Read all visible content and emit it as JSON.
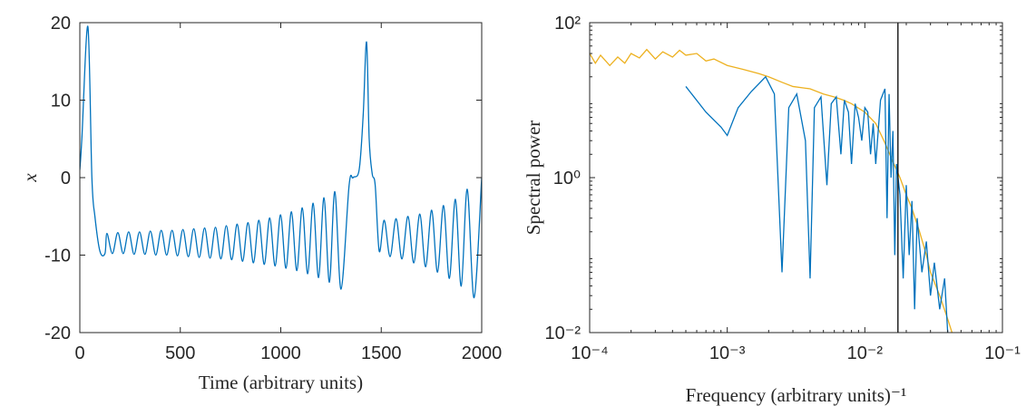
{
  "chart_data": [
    {
      "type": "line",
      "xlabel": "Time (arbitrary units)",
      "ylabel": "x",
      "xlim": [
        0,
        2000
      ],
      "xticks": [
        0,
        500,
        1000,
        1500,
        2000
      ],
      "ylim": [
        -20,
        20
      ],
      "yticks": [
        -20,
        -10,
        0,
        10,
        20
      ],
      "series": [
        {
          "color": "#0072bd",
          "x": [
            0,
            10,
            40,
            60,
            75,
            100,
            125,
            135,
            162,
            189,
            216,
            243,
            270,
            297,
            324,
            351,
            378,
            405,
            432,
            459,
            486,
            513,
            540,
            567,
            594,
            621,
            648,
            675,
            702,
            729,
            756,
            783,
            810,
            837,
            864,
            891,
            918,
            945,
            972,
            999,
            1026,
            1053,
            1080,
            1107,
            1134,
            1161,
            1188,
            1215,
            1242,
            1269,
            1300,
            1340,
            1360,
            1390,
            1410,
            1427,
            1440,
            1455,
            1470,
            1490,
            1515,
            1544,
            1574,
            1603,
            1633,
            1662,
            1692,
            1721,
            1751,
            1780,
            1810,
            1839,
            1869,
            1898,
            1928,
            1962,
            2000
          ],
          "values": [
            1,
            5,
            19.5,
            0,
            -5,
            -9.5,
            -9.8,
            -7.2,
            -9.8,
            -7.1,
            -9.8,
            -7.0,
            -9.9,
            -7.0,
            -9.9,
            -6.9,
            -10.0,
            -6.8,
            -10.0,
            -6.8,
            -10.1,
            -6.7,
            -10.2,
            -6.6,
            -10.3,
            -6.5,
            -10.4,
            -6.4,
            -10.5,
            -6.2,
            -10.6,
            -6.0,
            -10.8,
            -5.8,
            -11.0,
            -5.5,
            -11.2,
            -5.2,
            -11.4,
            -4.8,
            -11.7,
            -4.4,
            -12.0,
            -3.9,
            -12.4,
            -3.3,
            -12.9,
            -2.6,
            -13.5,
            -1.8,
            -14.4,
            -1,
            0,
            1,
            8,
            17.5,
            5,
            0.5,
            -1,
            -9.5,
            -5.5,
            -10.2,
            -5.3,
            -10.5,
            -5.0,
            -11.0,
            -4.7,
            -11.5,
            -4.2,
            -12.2,
            -3.6,
            -13.0,
            -2.8,
            -14.0,
            -1.5,
            -15.5,
            0
          ]
        }
      ]
    },
    {
      "type": "line",
      "xlabel": "Frequency (arbitrary units)⁻¹",
      "ylabel": "Spectral power",
      "log_x": true,
      "log_y": true,
      "xlim": [
        0.0001,
        0.1
      ],
      "xticks": [
        {
          "value": 0.0001,
          "label": "10⁻⁴"
        },
        {
          "value": 0.001,
          "label": "10⁻³"
        },
        {
          "value": 0.01,
          "label": "10⁻²"
        },
        {
          "value": 0.1,
          "label": "10⁻¹"
        }
      ],
      "ylim": [
        0.01,
        100
      ],
      "yticks": [
        {
          "value": 0.01,
          "label": "10⁻²"
        },
        {
          "value": 1,
          "label": "10⁰"
        },
        {
          "value": 100,
          "label": "10²"
        }
      ],
      "vline": 0.0174,
      "series": [
        {
          "color": "#edb120",
          "x": [
            0.0001,
            0.00011,
            0.00012,
            0.00014,
            0.00016,
            0.00018,
            0.0002,
            0.00023,
            0.00026,
            0.0003,
            0.00034,
            0.0004,
            0.00045,
            0.0005,
            0.0006,
            0.0007,
            0.0008,
            0.001,
            0.0013,
            0.0017,
            0.002,
            0.0025,
            0.003,
            0.004,
            0.005,
            0.006,
            0.007,
            0.008,
            0.01,
            0.012,
            0.014,
            0.016,
            0.018,
            0.02,
            0.022,
            0.025,
            0.028,
            0.03,
            0.035,
            0.04,
            0.043
          ],
          "values": [
            40,
            30,
            38,
            28,
            36,
            30,
            40,
            35,
            45,
            34,
            42,
            36,
            44,
            38,
            40,
            32,
            34,
            28,
            25,
            22,
            20,
            17,
            15,
            14,
            12,
            11,
            10,
            9,
            7,
            5,
            2.8,
            1.6,
            1.0,
            0.6,
            0.4,
            0.2,
            0.1,
            0.06,
            0.03,
            0.015,
            0.01
          ]
        },
        {
          "color": "#0072bd",
          "x": [
            0.0005,
            0.0007,
            0.0009,
            0.001,
            0.0012,
            0.0015,
            0.0019,
            0.0022,
            0.0025,
            0.0028,
            0.0032,
            0.0037,
            0.004,
            0.0043,
            0.0048,
            0.0053,
            0.0057,
            0.0062,
            0.0067,
            0.0071,
            0.0076,
            0.008,
            0.0085,
            0.009,
            0.0095,
            0.01,
            0.0105,
            0.011,
            0.0115,
            0.012,
            0.013,
            0.014,
            0.0145,
            0.015,
            0.0155,
            0.016,
            0.0165,
            0.017,
            0.018,
            0.019,
            0.02,
            0.021,
            0.022,
            0.023,
            0.024,
            0.026,
            0.028,
            0.03,
            0.032,
            0.035,
            0.038,
            0.04
          ],
          "values": [
            15,
            7,
            4.5,
            3.5,
            8,
            13,
            20,
            12,
            0.06,
            8,
            12,
            3,
            0.05,
            8,
            11,
            0.8,
            9,
            11,
            2,
            10,
            7,
            1.5,
            9,
            6,
            3,
            8,
            7,
            2,
            5,
            1.5,
            10,
            14,
            0.3,
            12,
            1,
            4,
            0.1,
            1.5,
            0.6,
            0.05,
            0.8,
            0.1,
            0.5,
            0.02,
            0.3,
            0.06,
            0.15,
            0.03,
            0.08,
            0.02,
            0.05,
            0.01
          ]
        }
      ]
    }
  ]
}
